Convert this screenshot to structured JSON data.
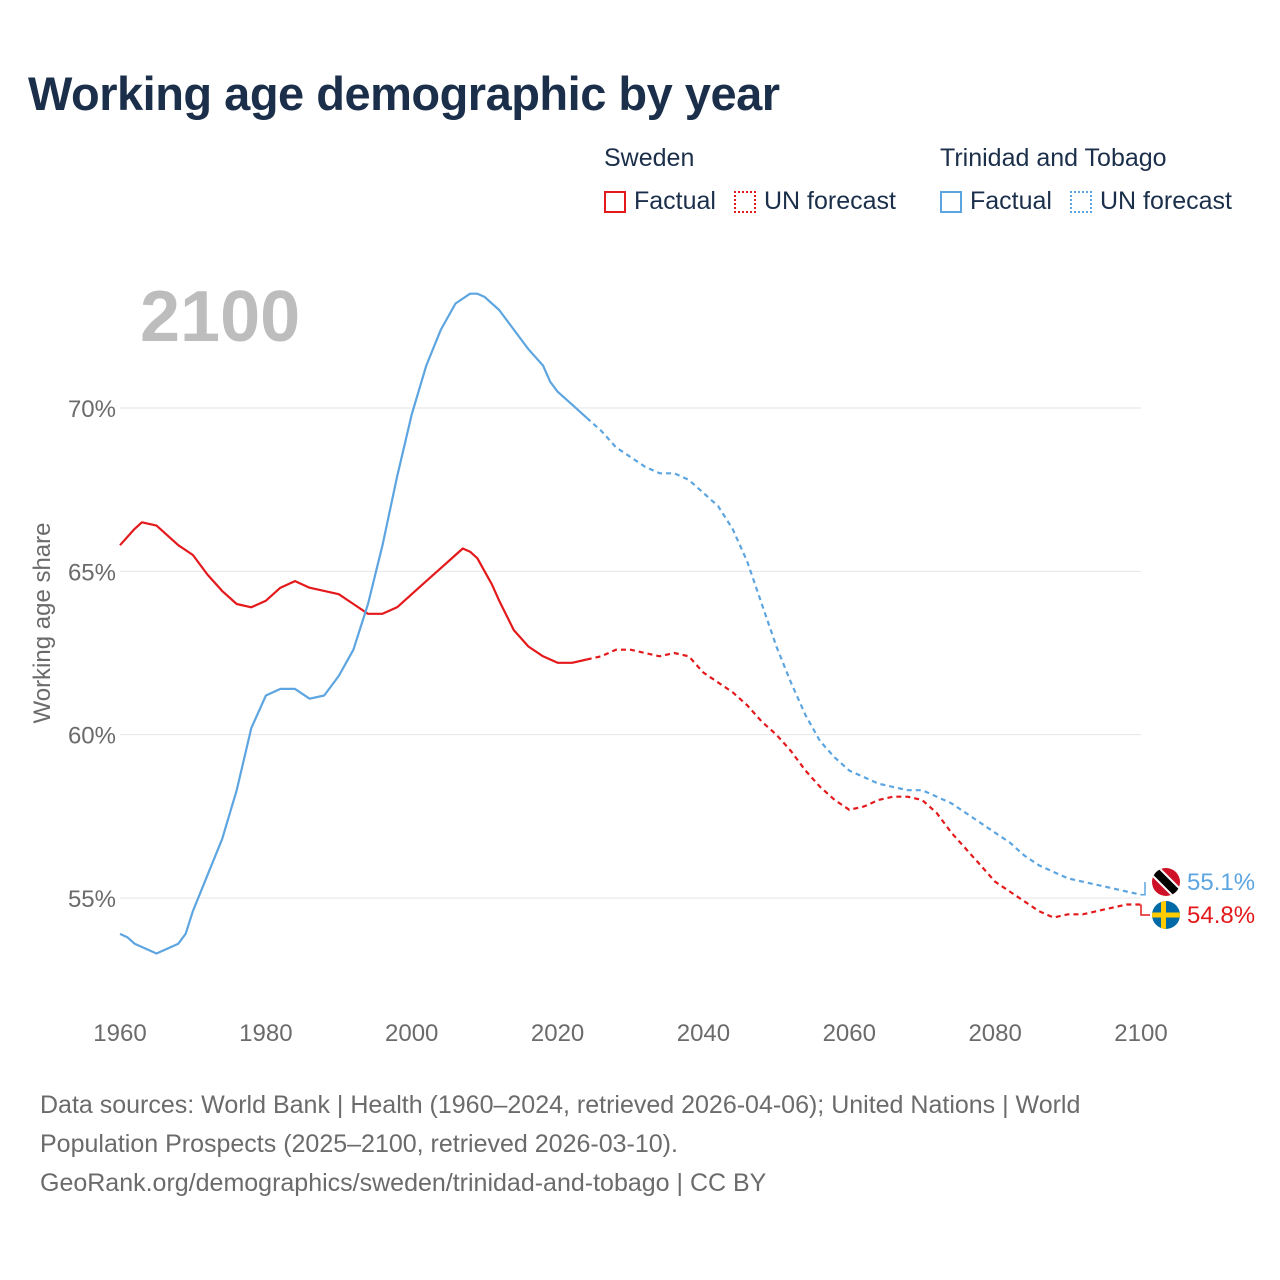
{
  "title": "Working age demographic by year",
  "year_overlay": "2100",
  "legend": {
    "sweden": {
      "country": "Sweden",
      "factual": "Factual",
      "forecast": "UN forecast",
      "color": "#e3191c"
    },
    "tt": {
      "country": "Trinidad and Tobago",
      "factual": "Factual",
      "forecast": "UN forecast",
      "color": "#5da5e0"
    }
  },
  "end_labels": {
    "tt": "55.1%",
    "sweden": "54.8%"
  },
  "footer": {
    "line1": "Data sources: World Bank | Health (1960–2024, retrieved 2026-04-06); United Nations | World",
    "line2": "Population Prospects (2025–2100, retrieved 2026-03-10).",
    "line3": "GeoRank.org/demographics/sweden/trinidad-and-tobago | CC BY"
  },
  "chart_data": {
    "type": "line",
    "title": "Working age demographic by year",
    "xlabel": "",
    "ylabel": "Working age share",
    "xlim": [
      1960,
      2100
    ],
    "ylim": [
      52.5,
      74
    ],
    "x_ticks": [
      1960,
      1980,
      2000,
      2020,
      2040,
      2060,
      2080,
      2100
    ],
    "y_ticks": [
      55,
      60,
      65,
      70
    ],
    "y_tick_labels": [
      "55%",
      "60%",
      "65%",
      "70%"
    ],
    "forecast_start": 2024,
    "series": [
      {
        "name": "Sweden",
        "color": "#e3191c",
        "points": [
          [
            1960,
            65.8
          ],
          [
            1962,
            66.3
          ],
          [
            1963,
            66.5
          ],
          [
            1965,
            66.4
          ],
          [
            1968,
            65.8
          ],
          [
            1970,
            65.5
          ],
          [
            1972,
            64.9
          ],
          [
            1974,
            64.4
          ],
          [
            1976,
            64.0
          ],
          [
            1978,
            63.9
          ],
          [
            1980,
            64.1
          ],
          [
            1982,
            64.5
          ],
          [
            1984,
            64.7
          ],
          [
            1986,
            64.5
          ],
          [
            1988,
            64.4
          ],
          [
            1990,
            64.3
          ],
          [
            1992,
            64.0
          ],
          [
            1994,
            63.7
          ],
          [
            1996,
            63.7
          ],
          [
            1998,
            63.9
          ],
          [
            2000,
            64.3
          ],
          [
            2002,
            64.7
          ],
          [
            2004,
            65.1
          ],
          [
            2006,
            65.5
          ],
          [
            2007,
            65.7
          ],
          [
            2008,
            65.6
          ],
          [
            2009,
            65.4
          ],
          [
            2010,
            65.0
          ],
          [
            2011,
            64.6
          ],
          [
            2012,
            64.1
          ],
          [
            2014,
            63.2
          ],
          [
            2016,
            62.7
          ],
          [
            2018,
            62.4
          ],
          [
            2020,
            62.2
          ],
          [
            2022,
            62.2
          ],
          [
            2024,
            62.3
          ],
          [
            2026,
            62.4
          ],
          [
            2028,
            62.6
          ],
          [
            2030,
            62.6
          ],
          [
            2032,
            62.5
          ],
          [
            2034,
            62.4
          ],
          [
            2036,
            62.5
          ],
          [
            2038,
            62.4
          ],
          [
            2040,
            61.9
          ],
          [
            2042,
            61.6
          ],
          [
            2044,
            61.3
          ],
          [
            2046,
            60.9
          ],
          [
            2048,
            60.4
          ],
          [
            2050,
            60.0
          ],
          [
            2052,
            59.5
          ],
          [
            2054,
            58.9
          ],
          [
            2056,
            58.4
          ],
          [
            2058,
            58.0
          ],
          [
            2060,
            57.7
          ],
          [
            2062,
            57.8
          ],
          [
            2064,
            58.0
          ],
          [
            2066,
            58.1
          ],
          [
            2068,
            58.1
          ],
          [
            2070,
            58.0
          ],
          [
            2072,
            57.6
          ],
          [
            2074,
            57.0
          ],
          [
            2076,
            56.5
          ],
          [
            2078,
            56.0
          ],
          [
            2080,
            55.5
          ],
          [
            2082,
            55.2
          ],
          [
            2084,
            54.9
          ],
          [
            2086,
            54.6
          ],
          [
            2088,
            54.4
          ],
          [
            2090,
            54.5
          ],
          [
            2092,
            54.5
          ],
          [
            2094,
            54.6
          ],
          [
            2096,
            54.7
          ],
          [
            2098,
            54.8
          ],
          [
            2100,
            54.8
          ]
        ]
      },
      {
        "name": "Trinidad and Tobago",
        "color": "#5da5e0",
        "points": [
          [
            1960,
            53.9
          ],
          [
            1961,
            53.8
          ],
          [
            1962,
            53.6
          ],
          [
            1964,
            53.4
          ],
          [
            1965,
            53.3
          ],
          [
            1966,
            53.4
          ],
          [
            1968,
            53.6
          ],
          [
            1969,
            53.9
          ],
          [
            1970,
            54.6
          ],
          [
            1972,
            55.7
          ],
          [
            1974,
            56.8
          ],
          [
            1976,
            58.3
          ],
          [
            1978,
            60.2
          ],
          [
            1980,
            61.2
          ],
          [
            1982,
            61.4
          ],
          [
            1984,
            61.4
          ],
          [
            1986,
            61.1
          ],
          [
            1988,
            61.2
          ],
          [
            1990,
            61.8
          ],
          [
            1992,
            62.6
          ],
          [
            1994,
            64.0
          ],
          [
            1996,
            65.8
          ],
          [
            1998,
            67.9
          ],
          [
            2000,
            69.8
          ],
          [
            2002,
            71.3
          ],
          [
            2004,
            72.4
          ],
          [
            2006,
            73.2
          ],
          [
            2008,
            73.5
          ],
          [
            2009,
            73.5
          ],
          [
            2010,
            73.4
          ],
          [
            2012,
            73.0
          ],
          [
            2014,
            72.4
          ],
          [
            2016,
            71.8
          ],
          [
            2018,
            71.3
          ],
          [
            2019,
            70.8
          ],
          [
            2020,
            70.5
          ],
          [
            2022,
            70.1
          ],
          [
            2024,
            69.7
          ],
          [
            2026,
            69.3
          ],
          [
            2028,
            68.8
          ],
          [
            2030,
            68.5
          ],
          [
            2032,
            68.2
          ],
          [
            2034,
            68.0
          ],
          [
            2036,
            68.0
          ],
          [
            2038,
            67.8
          ],
          [
            2040,
            67.4
          ],
          [
            2042,
            67.0
          ],
          [
            2044,
            66.3
          ],
          [
            2046,
            65.3
          ],
          [
            2048,
            64.0
          ],
          [
            2050,
            62.7
          ],
          [
            2052,
            61.6
          ],
          [
            2054,
            60.6
          ],
          [
            2056,
            59.8
          ],
          [
            2058,
            59.3
          ],
          [
            2060,
            58.9
          ],
          [
            2062,
            58.7
          ],
          [
            2064,
            58.5
          ],
          [
            2066,
            58.4
          ],
          [
            2068,
            58.3
          ],
          [
            2070,
            58.3
          ],
          [
            2072,
            58.1
          ],
          [
            2074,
            57.9
          ],
          [
            2076,
            57.6
          ],
          [
            2078,
            57.3
          ],
          [
            2080,
            57.0
          ],
          [
            2082,
            56.7
          ],
          [
            2084,
            56.3
          ],
          [
            2086,
            56.0
          ],
          [
            2088,
            55.8
          ],
          [
            2090,
            55.6
          ],
          [
            2092,
            55.5
          ],
          [
            2094,
            55.4
          ],
          [
            2096,
            55.3
          ],
          [
            2098,
            55.2
          ],
          [
            2100,
            55.1
          ]
        ]
      }
    ]
  }
}
